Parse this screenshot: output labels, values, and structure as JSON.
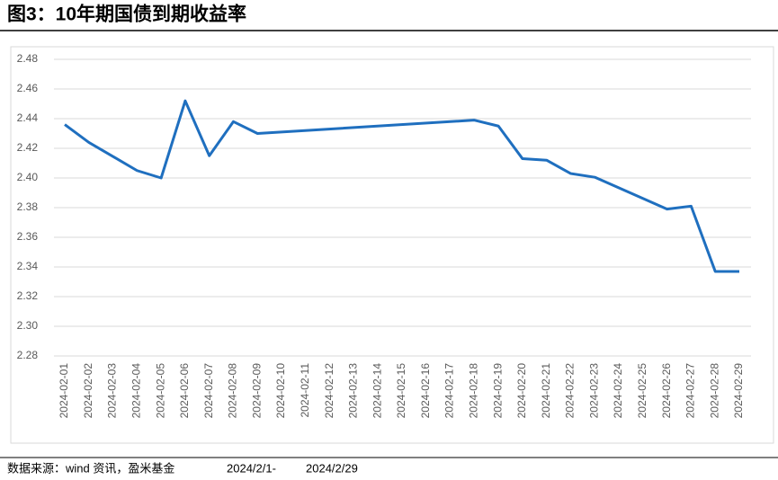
{
  "chart_data": {
    "type": "line",
    "title": "图3：10年期国债到期收益率",
    "source": "数据来源：wind 资讯，盈米基金",
    "period_start": "2024/2/1-",
    "period_end": "2024/2/29",
    "x": [
      "2024-02-01",
      "2024-02-02",
      "2024-02-04",
      "2024-02-05",
      "2024-02-06",
      "2024-02-07",
      "2024-02-08",
      "2024-02-09",
      "2024-02-18",
      "2024-02-19",
      "2024-02-20",
      "2024-02-21",
      "2024-02-22",
      "2024-02-23",
      "2024-02-26",
      "2024-02-27",
      "2024-02-28",
      "2024-02-29"
    ],
    "series": [
      {
        "color": "#1f6fbf",
        "values": [
          2.436,
          2.424,
          2.405,
          2.4,
          2.452,
          2.415,
          2.438,
          2.43,
          2.439,
          2.435,
          2.413,
          2.412,
          2.403,
          2.4005,
          2.379,
          2.381,
          2.337,
          2.337
        ]
      }
    ],
    "xlim": [
      "2024-02-01",
      "2024-02-29"
    ],
    "xticks": [
      "2024-02-01",
      "2024-02-02",
      "2024-02-03",
      "2024-02-04",
      "2024-02-05",
      "2024-02-06",
      "2024-02-07",
      "2024-02-08",
      "2024-02-09",
      "2024-02-10",
      "2024-02-11",
      "2024-02-12",
      "2024-02-13",
      "2024-02-14",
      "2024-02-15",
      "2024-02-16",
      "2024-02-17",
      "2024-02-18",
      "2024-02-19",
      "2024-02-20",
      "2024-02-21",
      "2024-02-22",
      "2024-02-23",
      "2024-02-24",
      "2024-02-25",
      "2024-02-26",
      "2024-02-27",
      "2024-02-28",
      "2024-02-29"
    ],
    "ylim": [
      2.28,
      2.48
    ],
    "yticks": [
      2.28,
      {
        "value": 2.3,
        "label": "2.30"
      },
      2.32,
      2.34,
      2.36,
      2.38,
      {
        "value": 2.4,
        "label": "2.40"
      },
      2.42,
      2.44,
      2.46,
      2.48
    ],
    "grid": true
  }
}
